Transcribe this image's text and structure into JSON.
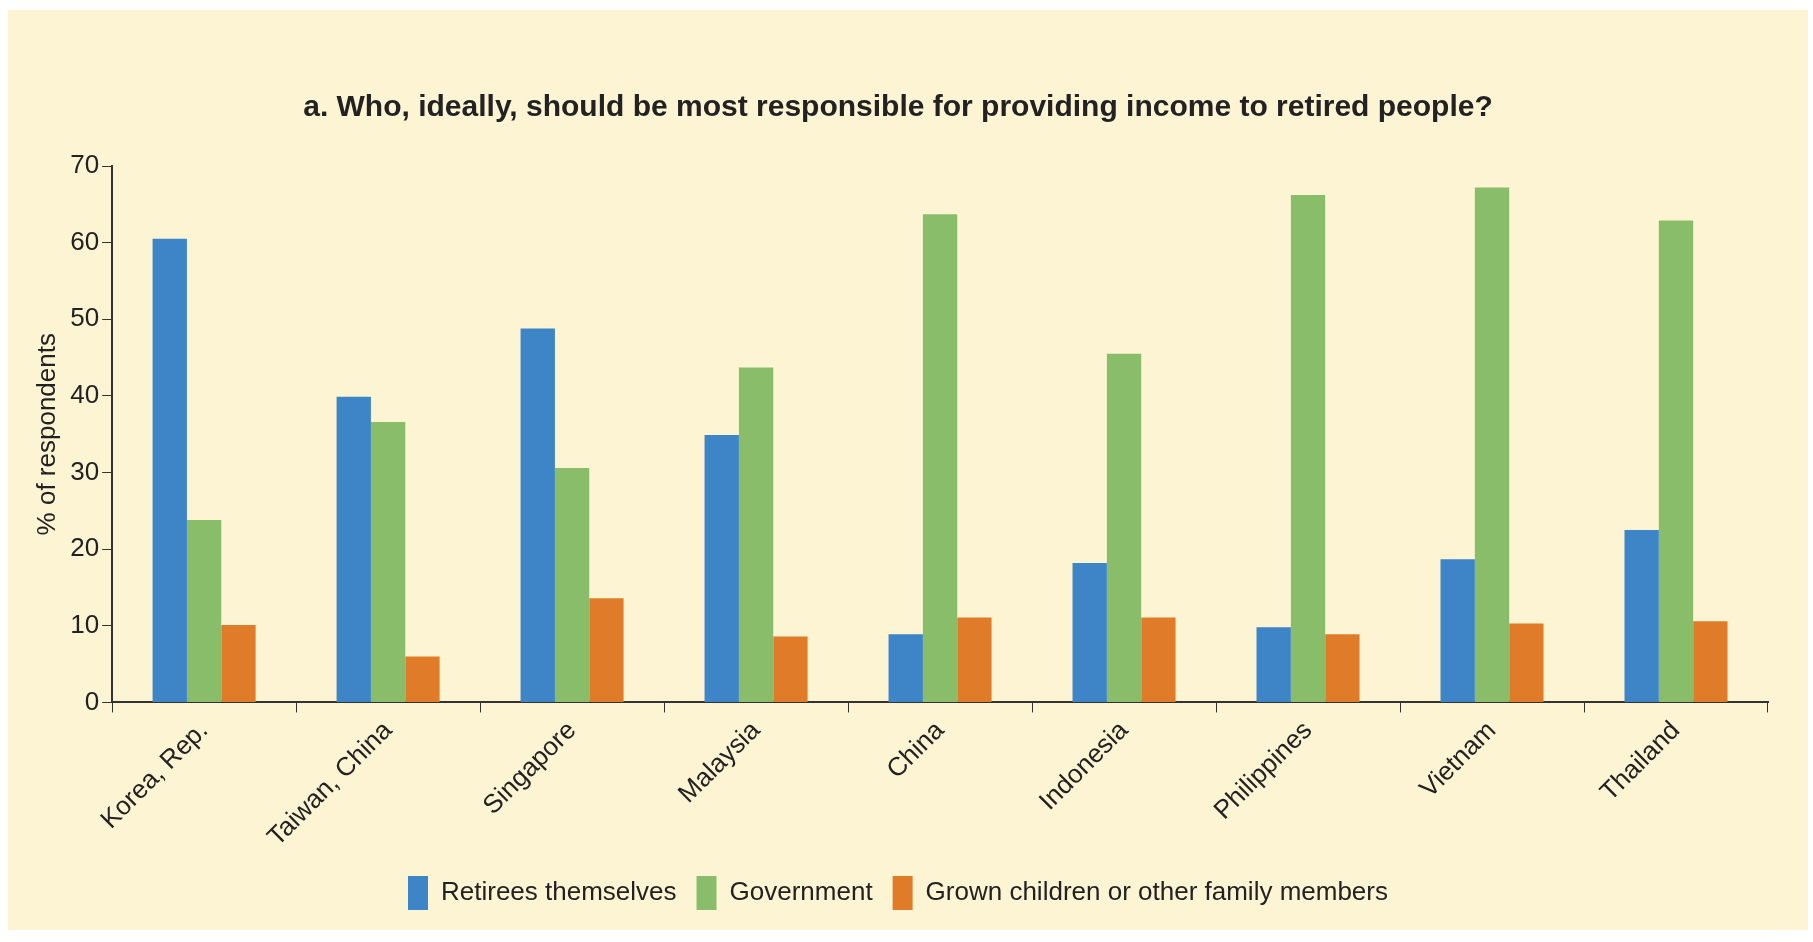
{
  "chart_data": {
    "type": "bar",
    "title": "a. Who, ideally, should be most responsible for providing income to retired people?",
    "ylabel": "% of respondents",
    "categories": [
      "Korea, Rep.",
      "Taiwan, China",
      "Singapore",
      "Malaysia",
      "China",
      "Indonesia",
      "Philippines",
      "Vietnam",
      "Thailand"
    ],
    "series": [
      {
        "name": "Retirees themselves",
        "color": "#3d85c6",
        "values": [
          60.5,
          39.9,
          48.8,
          34.9,
          8.9,
          18.2,
          9.8,
          18.7,
          22.5
        ]
      },
      {
        "name": "Government",
        "color": "#8abd6a",
        "values": [
          23.8,
          36.6,
          30.6,
          43.7,
          63.7,
          45.5,
          66.2,
          67.2,
          62.9
        ]
      },
      {
        "name": "Grown children or other family members",
        "color": "#e07b2a",
        "values": [
          10.1,
          6.0,
          13.6,
          8.6,
          11.1,
          11.1,
          8.9,
          10.3,
          10.6
        ]
      }
    ],
    "ylim": [
      0,
      70
    ],
    "yticks": [
      0,
      10,
      20,
      30,
      40,
      50,
      60,
      70
    ],
    "grid": false,
    "legend": "bottom"
  }
}
